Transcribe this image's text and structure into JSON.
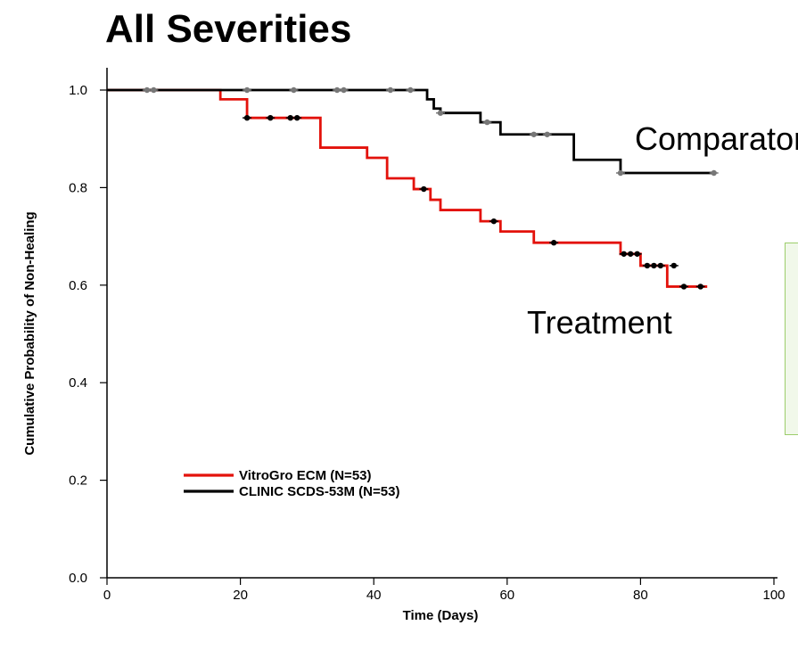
{
  "chart_data": {
    "type": "line",
    "subtype": "kaplan-meier-step",
    "title": "All Severities",
    "xlabel": "Time (Days)",
    "ylabel": "Cumulative Probability of Non-Healing",
    "xlim": [
      0,
      100
    ],
    "ylim": [
      0.0,
      1.0
    ],
    "x_ticks": [
      "0",
      "20",
      "40",
      "60",
      "80",
      "100"
    ],
    "y_ticks": [
      "0.0",
      "0.2",
      "0.4",
      "0.6",
      "0.8",
      "1.0"
    ],
    "grid": false,
    "legend_position": "lower-left",
    "series": [
      {
        "name": "VitroGro ECM (N=53)",
        "label": "Treatment",
        "color": "#e3120b",
        "steps": [
          [
            0,
            1.0
          ],
          [
            17,
            0.981
          ],
          [
            21,
            0.943
          ],
          [
            32,
            0.882
          ],
          [
            39,
            0.861
          ],
          [
            42,
            0.819
          ],
          [
            46,
            0.797
          ],
          [
            48.5,
            0.775
          ],
          [
            50,
            0.754
          ],
          [
            56,
            0.731
          ],
          [
            59,
            0.71
          ],
          [
            64,
            0.687
          ],
          [
            77,
            0.664
          ],
          [
            80,
            0.64
          ],
          [
            84,
            0.597
          ],
          [
            90,
            0.597
          ]
        ],
        "censored": [
          [
            21,
            0.943
          ],
          [
            24.5,
            0.943
          ],
          [
            27.5,
            0.943
          ],
          [
            28.5,
            0.943
          ],
          [
            47.5,
            0.797
          ],
          [
            58,
            0.731
          ],
          [
            67,
            0.687
          ],
          [
            77.5,
            0.664
          ],
          [
            78.5,
            0.664
          ],
          [
            79.5,
            0.664
          ],
          [
            81,
            0.64
          ],
          [
            82,
            0.64
          ],
          [
            83,
            0.64
          ],
          [
            85,
            0.64
          ],
          [
            86.5,
            0.597
          ],
          [
            89,
            0.597
          ]
        ]
      },
      {
        "name": "CLINIC SCDS-53M (N=53)",
        "label": "Comparator",
        "color": "#000000",
        "steps": [
          [
            0,
            1.0
          ],
          [
            48,
            0.981
          ],
          [
            49,
            0.962
          ],
          [
            50,
            0.953
          ],
          [
            56,
            0.934
          ],
          [
            59,
            0.909
          ],
          [
            70,
            0.857
          ],
          [
            77,
            0.83
          ],
          [
            91,
            0.83
          ]
        ],
        "censored": [
          [
            6,
            1.0
          ],
          [
            7,
            1.0
          ],
          [
            21,
            1.0
          ],
          [
            28,
            1.0
          ],
          [
            34.5,
            1.0
          ],
          [
            35.5,
            1.0
          ],
          [
            42.5,
            1.0
          ],
          [
            45.5,
            1.0
          ],
          [
            50,
            0.953
          ],
          [
            57,
            0.934
          ],
          [
            64,
            0.909
          ],
          [
            66,
            0.909
          ],
          [
            77,
            0.83
          ],
          [
            91,
            0.83
          ]
        ]
      }
    ]
  }
}
